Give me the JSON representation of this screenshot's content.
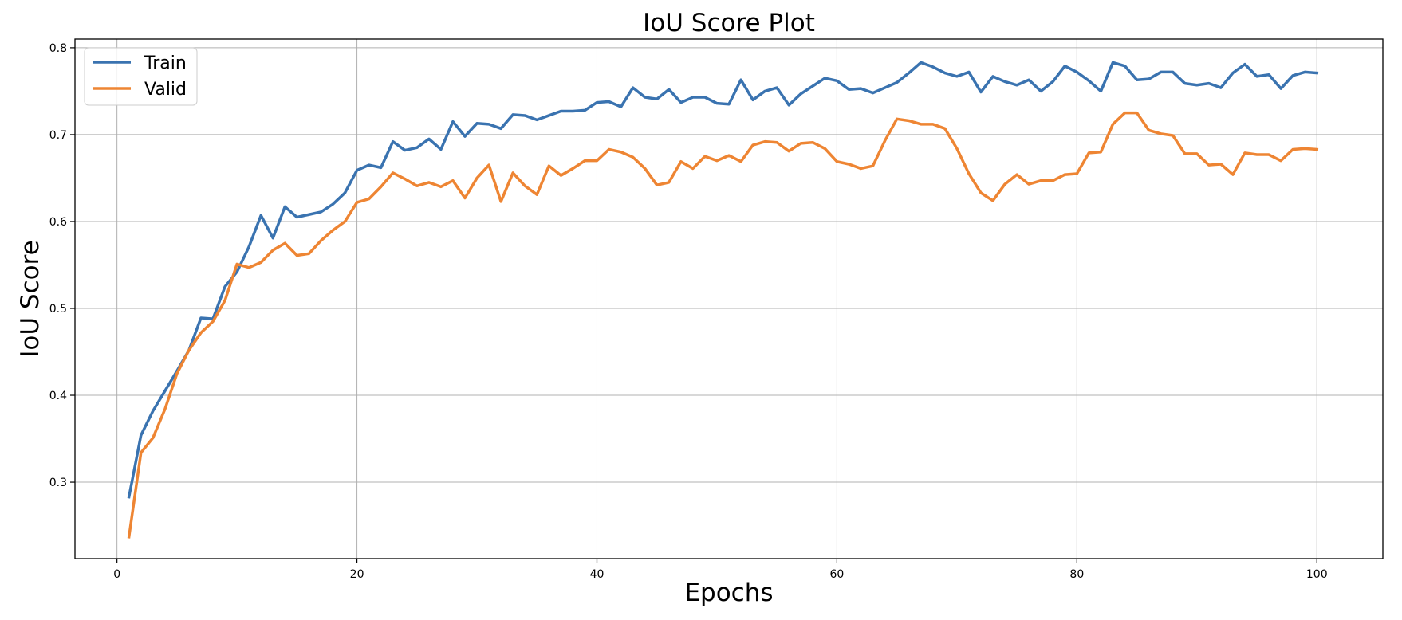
{
  "chart_data": {
    "type": "line",
    "title": "IoU Score Plot",
    "xlabel": "Epochs",
    "ylabel": "IoU Score",
    "xlim": [
      -3.5,
      105.5
    ],
    "ylim": [
      0.212,
      0.81
    ],
    "xticks": [
      0,
      20,
      40,
      60,
      80,
      100
    ],
    "yticks": [
      0.3,
      0.4,
      0.5,
      0.6,
      0.7,
      0.8
    ],
    "xtick_labels": [
      "0",
      "20",
      "40",
      "60",
      "80",
      "100"
    ],
    "ytick_labels": [
      "0.3",
      "0.4",
      "0.5",
      "0.6",
      "0.7",
      "0.8"
    ],
    "grid": true,
    "legend_position": "top-left",
    "x": [
      1,
      2,
      3,
      4,
      5,
      6,
      7,
      8,
      9,
      10,
      11,
      12,
      13,
      14,
      15,
      16,
      17,
      18,
      19,
      20,
      21,
      22,
      23,
      24,
      25,
      26,
      27,
      28,
      29,
      30,
      31,
      32,
      33,
      34,
      35,
      36,
      37,
      38,
      39,
      40,
      41,
      42,
      43,
      44,
      45,
      46,
      47,
      48,
      49,
      50,
      51,
      52,
      53,
      54,
      55,
      56,
      57,
      58,
      59,
      60,
      61,
      62,
      63,
      64,
      65,
      66,
      67,
      68,
      69,
      70,
      71,
      72,
      73,
      74,
      75,
      76,
      77,
      78,
      79,
      80,
      81,
      82,
      83,
      84,
      85,
      86,
      87,
      88,
      89,
      90,
      91,
      92,
      93,
      94,
      95,
      96,
      97,
      98,
      99,
      100
    ],
    "series": [
      {
        "name": "Train",
        "color": "#3a73b0",
        "values": [
          0.283,
          0.354,
          0.382,
          0.405,
          0.428,
          0.452,
          0.489,
          0.488,
          0.525,
          0.542,
          0.571,
          0.607,
          0.581,
          0.617,
          0.605,
          0.608,
          0.611,
          0.62,
          0.633,
          0.659,
          0.665,
          0.662,
          0.692,
          0.682,
          0.685,
          0.695,
          0.683,
          0.715,
          0.698,
          0.713,
          0.712,
          0.707,
          0.723,
          0.722,
          0.717,
          0.722,
          0.727,
          0.727,
          0.728,
          0.737,
          0.738,
          0.732,
          0.754,
          0.743,
          0.741,
          0.752,
          0.737,
          0.743,
          0.743,
          0.736,
          0.735,
          0.763,
          0.74,
          0.75,
          0.754,
          0.734,
          0.747,
          0.756,
          0.765,
          0.762,
          0.752,
          0.753,
          0.748,
          0.754,
          0.76,
          0.771,
          0.783,
          0.778,
          0.771,
          0.767,
          0.772,
          0.749,
          0.767,
          0.761,
          0.757,
          0.763,
          0.75,
          0.761,
          0.779,
          0.772,
          0.762,
          0.75,
          0.783,
          0.779,
          0.763,
          0.764,
          0.772,
          0.772,
          0.759,
          0.757,
          0.759,
          0.754,
          0.771,
          0.781,
          0.767,
          0.769,
          0.753,
          0.768,
          0.772,
          0.771
        ]
      },
      {
        "name": "Valid",
        "color": "#ee8533",
        "values": [
          0.237,
          0.334,
          0.351,
          0.384,
          0.425,
          0.452,
          0.472,
          0.485,
          0.509,
          0.551,
          0.547,
          0.553,
          0.567,
          0.575,
          0.561,
          0.563,
          0.578,
          0.59,
          0.6,
          0.622,
          0.626,
          0.64,
          0.656,
          0.649,
          0.641,
          0.645,
          0.64,
          0.647,
          0.627,
          0.65,
          0.665,
          0.623,
          0.656,
          0.641,
          0.631,
          0.664,
          0.653,
          0.661,
          0.67,
          0.67,
          0.683,
          0.68,
          0.674,
          0.661,
          0.642,
          0.645,
          0.669,
          0.661,
          0.675,
          0.67,
          0.676,
          0.669,
          0.688,
          0.692,
          0.691,
          0.681,
          0.69,
          0.691,
          0.684,
          0.669,
          0.666,
          0.661,
          0.664,
          0.693,
          0.718,
          0.716,
          0.712,
          0.712,
          0.707,
          0.684,
          0.655,
          0.633,
          0.624,
          0.643,
          0.654,
          0.643,
          0.647,
          0.647,
          0.654,
          0.655,
          0.679,
          0.68,
          0.712,
          0.725,
          0.725,
          0.705,
          0.701,
          0.699,
          0.678,
          0.678,
          0.665,
          0.666,
          0.654,
          0.679,
          0.677,
          0.677,
          0.67,
          0.683,
          0.684,
          0.683
        ]
      }
    ]
  }
}
